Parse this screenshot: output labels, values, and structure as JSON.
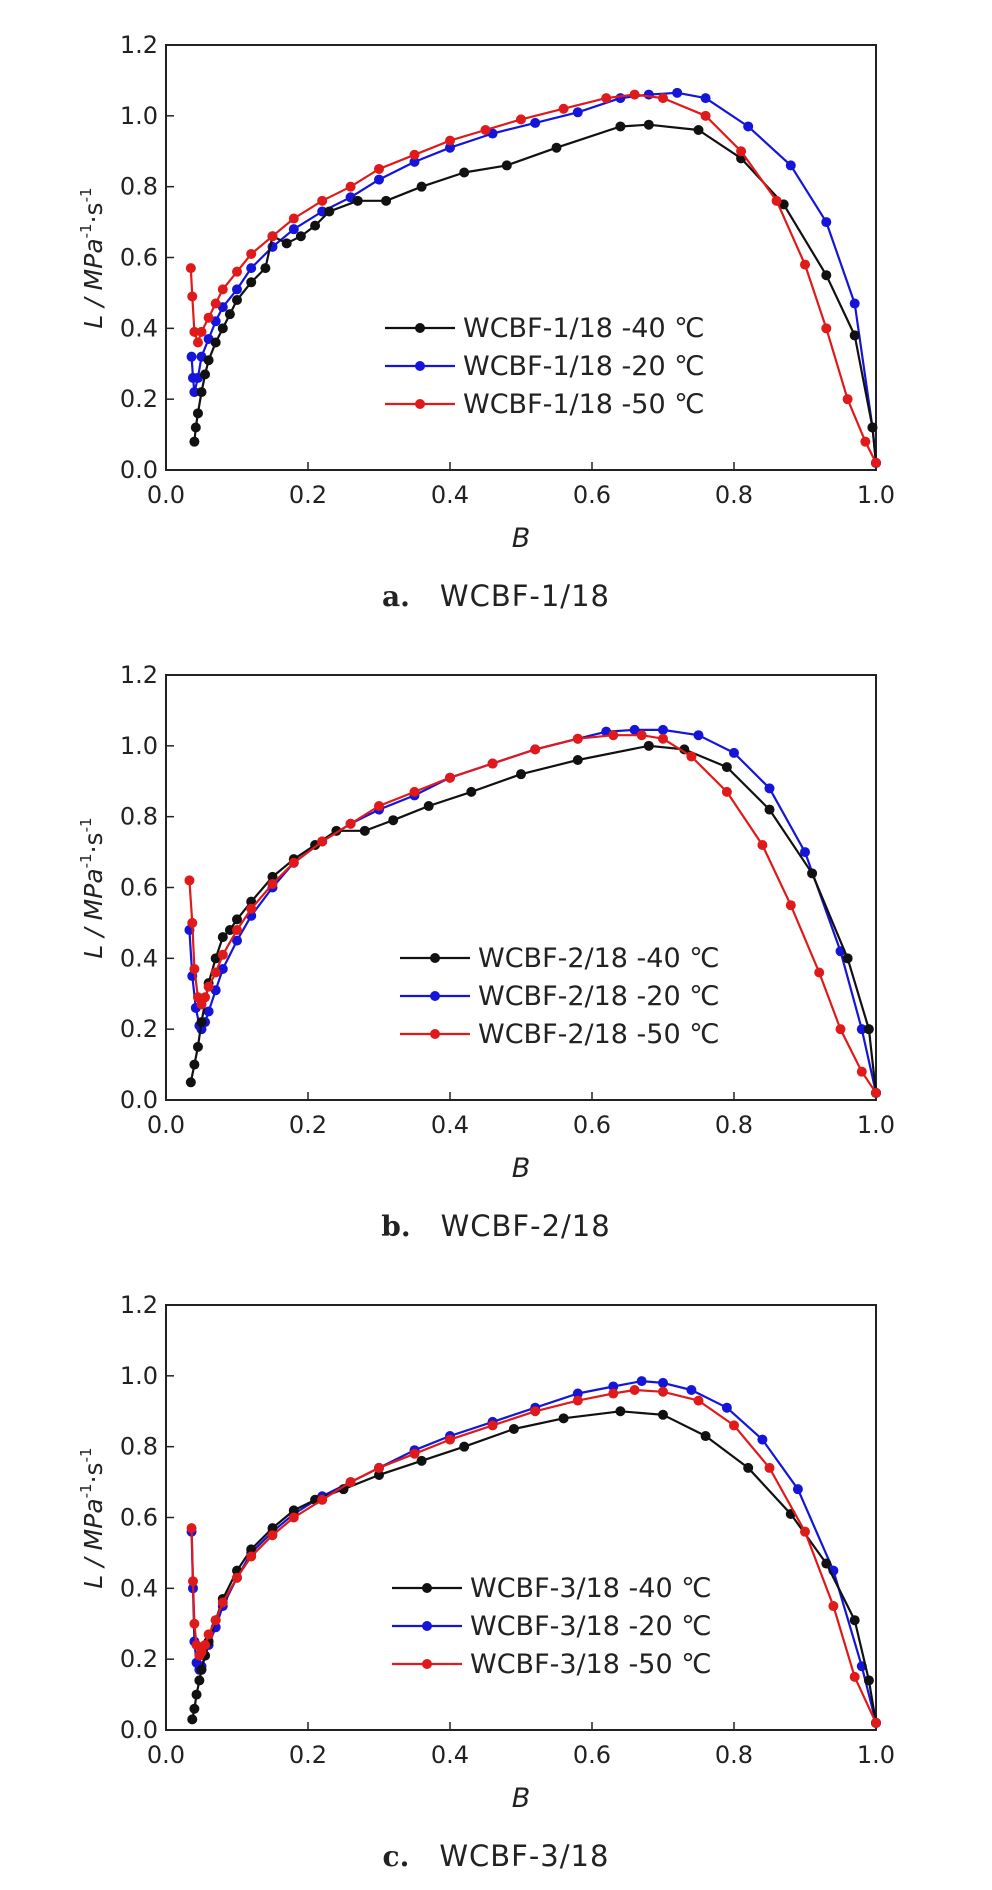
{
  "chart_data": [
    {
      "type": "line",
      "caption_letter": "a.",
      "caption_text": "WCBF-1/18",
      "xlabel": "B",
      "ylabel": "L / MPa",
      "ylabel_sup1": "-1",
      "ylabel_mid": "·s",
      "ylabel_sup2": "-1",
      "xlim": [
        0.0,
        1.0
      ],
      "ylim": [
        0.0,
        1.2
      ],
      "xticks": [
        "0.0",
        "0.2",
        "0.4",
        "0.6",
        "0.8",
        "1.0"
      ],
      "yticks": [
        "0.0",
        "0.2",
        "0.4",
        "0.6",
        "0.8",
        "1.0",
        "1.2"
      ],
      "legend_position": "lower-middle",
      "series": [
        {
          "name": "WCBF-1/18 -40 ℃",
          "color": "#111111",
          "x": [
            0.04,
            0.042,
            0.045,
            0.05,
            0.055,
            0.06,
            0.07,
            0.08,
            0.09,
            0.1,
            0.12,
            0.14,
            0.15,
            0.17,
            0.19,
            0.21,
            0.23,
            0.27,
            0.31,
            0.36,
            0.42,
            0.48,
            0.55,
            0.64,
            0.68,
            0.75,
            0.81,
            0.87,
            0.93,
            0.97,
            0.995,
            1.0
          ],
          "y": [
            0.08,
            0.12,
            0.16,
            0.22,
            0.27,
            0.31,
            0.36,
            0.4,
            0.44,
            0.48,
            0.53,
            0.57,
            0.66,
            0.64,
            0.66,
            0.69,
            0.73,
            0.76,
            0.76,
            0.8,
            0.84,
            0.86,
            0.91,
            0.97,
            0.975,
            0.96,
            0.88,
            0.75,
            0.55,
            0.38,
            0.12,
            0.02
          ]
        },
        {
          "name": "WCBF-1/18 -20 ℃",
          "color": "#1515d9",
          "x": [
            0.036,
            0.038,
            0.04,
            0.045,
            0.05,
            0.06,
            0.07,
            0.08,
            0.1,
            0.12,
            0.15,
            0.18,
            0.22,
            0.26,
            0.3,
            0.35,
            0.4,
            0.46,
            0.52,
            0.58,
            0.64,
            0.68,
            0.72,
            0.76,
            0.82,
            0.88,
            0.93,
            0.97,
            0.995,
            1.0
          ],
          "y": [
            0.32,
            0.26,
            0.22,
            0.26,
            0.32,
            0.37,
            0.42,
            0.46,
            0.51,
            0.57,
            0.63,
            0.68,
            0.73,
            0.77,
            0.82,
            0.87,
            0.91,
            0.95,
            0.98,
            1.01,
            1.05,
            1.06,
            1.065,
            1.05,
            0.97,
            0.86,
            0.7,
            0.47,
            0.12,
            0.02
          ]
        },
        {
          "name": "WCBF-1/18 -50 ℃",
          "color": "#e01a1a",
          "x": [
            0.035,
            0.037,
            0.04,
            0.045,
            0.05,
            0.06,
            0.07,
            0.08,
            0.1,
            0.12,
            0.15,
            0.18,
            0.22,
            0.26,
            0.3,
            0.35,
            0.4,
            0.45,
            0.5,
            0.56,
            0.62,
            0.66,
            0.7,
            0.76,
            0.81,
            0.86,
            0.9,
            0.93,
            0.96,
            0.985,
            1.0
          ],
          "y": [
            0.57,
            0.49,
            0.39,
            0.36,
            0.39,
            0.43,
            0.47,
            0.51,
            0.56,
            0.61,
            0.66,
            0.71,
            0.76,
            0.8,
            0.85,
            0.89,
            0.93,
            0.96,
            0.99,
            1.02,
            1.05,
            1.06,
            1.05,
            1.0,
            0.9,
            0.76,
            0.58,
            0.4,
            0.2,
            0.08,
            0.02
          ]
        }
      ]
    },
    {
      "type": "line",
      "caption_letter": "b.",
      "caption_text": "WCBF-2/18",
      "xlabel": "B",
      "ylabel": "L / MPa",
      "ylabel_sup1": "-1",
      "ylabel_mid": "·s",
      "ylabel_sup2": "-1",
      "xlim": [
        0.0,
        1.0
      ],
      "ylim": [
        0.0,
        1.2
      ],
      "xticks": [
        "0.0",
        "0.2",
        "0.4",
        "0.6",
        "0.8",
        "1.0"
      ],
      "yticks": [
        "0.0",
        "0.2",
        "0.4",
        "0.6",
        "0.8",
        "1.0",
        "1.2"
      ],
      "legend_position": "lower-middle",
      "series": [
        {
          "name": "WCBF-2/18 -40 ℃",
          "color": "#111111",
          "x": [
            0.035,
            0.04,
            0.045,
            0.05,
            0.06,
            0.07,
            0.08,
            0.09,
            0.1,
            0.12,
            0.15,
            0.18,
            0.21,
            0.24,
            0.28,
            0.32,
            0.37,
            0.43,
            0.5,
            0.58,
            0.68,
            0.73,
            0.79,
            0.85,
            0.91,
            0.96,
            0.99,
            1.0
          ],
          "y": [
            0.05,
            0.1,
            0.15,
            0.22,
            0.33,
            0.4,
            0.46,
            0.48,
            0.51,
            0.56,
            0.63,
            0.68,
            0.72,
            0.76,
            0.76,
            0.79,
            0.83,
            0.87,
            0.92,
            0.96,
            1.0,
            0.99,
            0.94,
            0.82,
            0.64,
            0.4,
            0.2,
            0.02
          ]
        },
        {
          "name": "WCBF-2/18 -20 ℃",
          "color": "#1515d9",
          "x": [
            0.033,
            0.037,
            0.042,
            0.047,
            0.05,
            0.055,
            0.06,
            0.07,
            0.08,
            0.1,
            0.12,
            0.15,
            0.18,
            0.22,
            0.26,
            0.3,
            0.35,
            0.4,
            0.46,
            0.52,
            0.58,
            0.62,
            0.66,
            0.7,
            0.75,
            0.8,
            0.85,
            0.9,
            0.95,
            0.98,
            1.0
          ],
          "y": [
            0.48,
            0.35,
            0.26,
            0.21,
            0.2,
            0.22,
            0.25,
            0.31,
            0.37,
            0.45,
            0.52,
            0.6,
            0.67,
            0.73,
            0.78,
            0.82,
            0.86,
            0.91,
            0.95,
            0.99,
            1.02,
            1.04,
            1.045,
            1.045,
            1.03,
            0.98,
            0.88,
            0.7,
            0.42,
            0.2,
            0.02
          ]
        },
        {
          "name": "WCBF-2/18 -50 ℃",
          "color": "#e01a1a",
          "x": [
            0.033,
            0.037,
            0.04,
            0.045,
            0.05,
            0.055,
            0.06,
            0.07,
            0.08,
            0.1,
            0.12,
            0.15,
            0.18,
            0.22,
            0.26,
            0.3,
            0.35,
            0.4,
            0.46,
            0.52,
            0.58,
            0.63,
            0.67,
            0.7,
            0.74,
            0.79,
            0.84,
            0.88,
            0.92,
            0.95,
            0.98,
            1.0
          ],
          "y": [
            0.62,
            0.5,
            0.37,
            0.29,
            0.27,
            0.29,
            0.32,
            0.36,
            0.41,
            0.48,
            0.54,
            0.61,
            0.67,
            0.73,
            0.78,
            0.83,
            0.87,
            0.91,
            0.95,
            0.99,
            1.02,
            1.03,
            1.03,
            1.02,
            0.97,
            0.87,
            0.72,
            0.55,
            0.36,
            0.2,
            0.08,
            0.02
          ]
        }
      ]
    },
    {
      "type": "line",
      "caption_letter": "c.",
      "caption_text": "WCBF-3/18",
      "xlabel": "B",
      "ylabel": "L / MPa",
      "ylabel_sup1": "-1",
      "ylabel_mid": "·s",
      "ylabel_sup2": "-1",
      "xlim": [
        0.0,
        1.0
      ],
      "ylim": [
        0.0,
        1.2
      ],
      "xticks": [
        "0.0",
        "0.2",
        "0.4",
        "0.6",
        "0.8",
        "1.0"
      ],
      "yticks": [
        "0.0",
        "0.2",
        "0.4",
        "0.6",
        "0.8",
        "1.0",
        "1.2"
      ],
      "legend_position": "lower-middle",
      "series": [
        {
          "name": "WCBF-3/18 -40 ℃",
          "color": "#111111",
          "x": [
            0.037,
            0.04,
            0.043,
            0.047,
            0.05,
            0.055,
            0.06,
            0.07,
            0.08,
            0.1,
            0.12,
            0.15,
            0.18,
            0.21,
            0.25,
            0.3,
            0.36,
            0.42,
            0.49,
            0.56,
            0.64,
            0.7,
            0.76,
            0.82,
            0.88,
            0.93,
            0.97,
            0.99,
            1.0
          ],
          "y": [
            0.03,
            0.06,
            0.1,
            0.14,
            0.17,
            0.21,
            0.25,
            0.31,
            0.37,
            0.45,
            0.51,
            0.57,
            0.62,
            0.65,
            0.68,
            0.72,
            0.76,
            0.8,
            0.85,
            0.88,
            0.9,
            0.89,
            0.83,
            0.74,
            0.61,
            0.47,
            0.31,
            0.14,
            0.02
          ]
        },
        {
          "name": "WCBF-3/18 -20 ℃",
          "color": "#1515d9",
          "x": [
            0.036,
            0.038,
            0.04,
            0.043,
            0.047,
            0.05,
            0.055,
            0.06,
            0.07,
            0.08,
            0.1,
            0.12,
            0.15,
            0.18,
            0.22,
            0.26,
            0.3,
            0.35,
            0.4,
            0.46,
            0.52,
            0.58,
            0.63,
            0.67,
            0.7,
            0.74,
            0.79,
            0.84,
            0.89,
            0.94,
            0.98,
            1.0
          ],
          "y": [
            0.56,
            0.4,
            0.25,
            0.19,
            0.17,
            0.18,
            0.21,
            0.24,
            0.29,
            0.35,
            0.43,
            0.5,
            0.56,
            0.61,
            0.66,
            0.7,
            0.74,
            0.79,
            0.83,
            0.87,
            0.91,
            0.95,
            0.97,
            0.985,
            0.98,
            0.96,
            0.91,
            0.82,
            0.68,
            0.45,
            0.18,
            0.02
          ]
        },
        {
          "name": "WCBF-3/18 -50 ℃",
          "color": "#e01a1a",
          "x": [
            0.036,
            0.038,
            0.04,
            0.043,
            0.047,
            0.05,
            0.055,
            0.06,
            0.07,
            0.08,
            0.1,
            0.12,
            0.15,
            0.18,
            0.22,
            0.26,
            0.3,
            0.35,
            0.4,
            0.46,
            0.52,
            0.58,
            0.63,
            0.66,
            0.7,
            0.75,
            0.8,
            0.85,
            0.9,
            0.94,
            0.97,
            1.0
          ],
          "y": [
            0.57,
            0.42,
            0.3,
            0.24,
            0.21,
            0.22,
            0.24,
            0.27,
            0.31,
            0.36,
            0.43,
            0.49,
            0.55,
            0.6,
            0.65,
            0.7,
            0.74,
            0.78,
            0.82,
            0.86,
            0.9,
            0.93,
            0.95,
            0.96,
            0.955,
            0.93,
            0.86,
            0.74,
            0.56,
            0.35,
            0.15,
            0.02
          ]
        }
      ]
    }
  ]
}
